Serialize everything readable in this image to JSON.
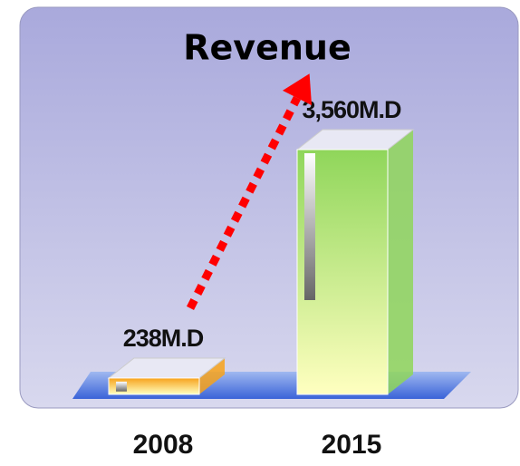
{
  "chart_data": {
    "type": "bar",
    "title": "Revenue",
    "categories": [
      "2008",
      "2015"
    ],
    "values": [
      238,
      3560
    ],
    "value_labels": [
      "238M.D",
      "3,560M.D"
    ],
    "colors": [
      "#f7a21b",
      "#8fd65a"
    ]
  }
}
